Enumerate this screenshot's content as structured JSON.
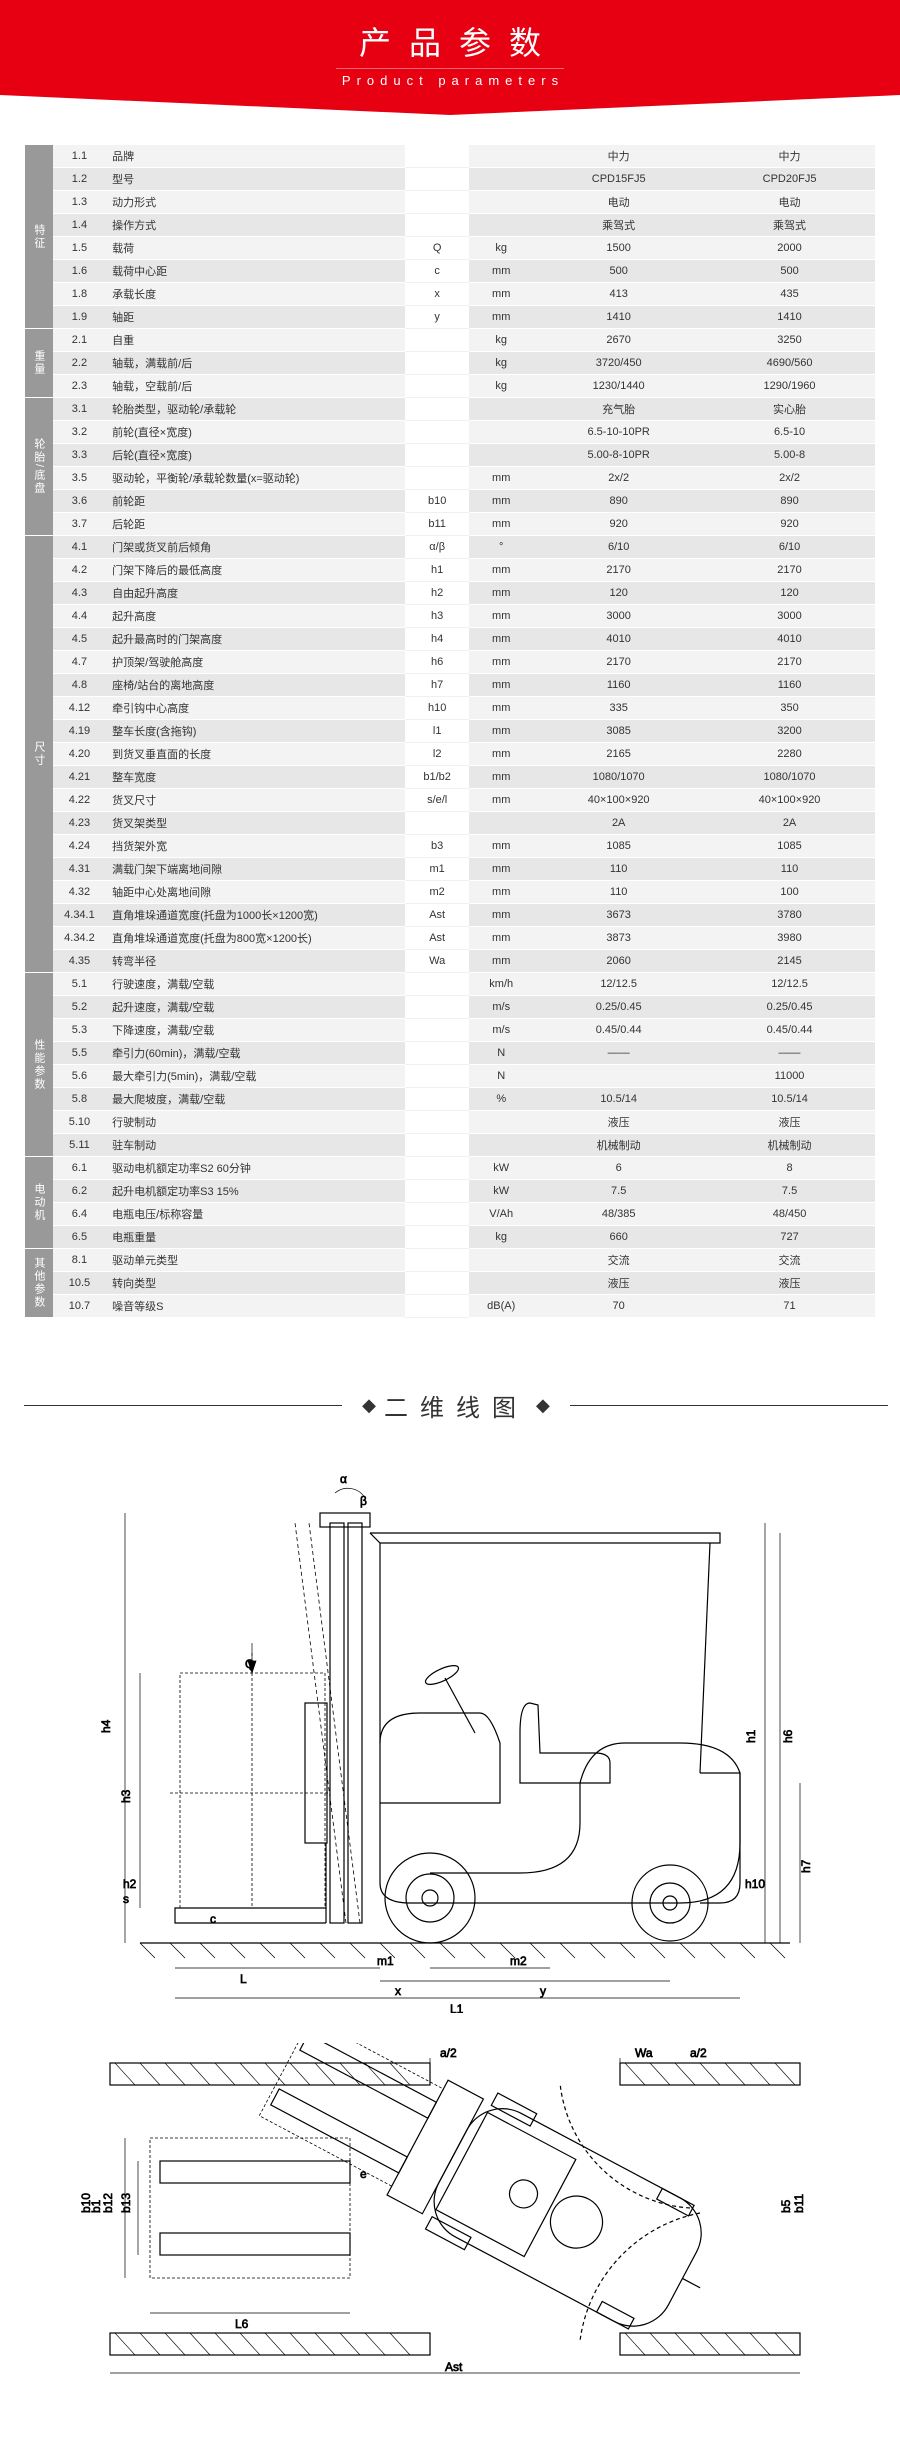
{
  "header": {
    "title_cn": "产品参数",
    "title_en": "Product parameters"
  },
  "section_diagram_title": "二维线图",
  "colors": {
    "banner_bg": "#e60012",
    "banner_text": "#ffffff",
    "cat_bg": "#999999",
    "row_even": "#f3f3f3",
    "row_odd": "#e7e7e7"
  },
  "table": {
    "columns": [
      "idx",
      "label",
      "symbol",
      "unit",
      "v1",
      "v2"
    ],
    "categories": [
      {
        "name": "特征",
        "rows": [
          {
            "idx": "1.1",
            "label": "品牌",
            "symbol": "",
            "unit": "",
            "v1": "中力",
            "v2": "中力"
          },
          {
            "idx": "1.2",
            "label": "型号",
            "symbol": "",
            "unit": "",
            "v1": "CPD15FJ5",
            "v2": "CPD20FJ5"
          },
          {
            "idx": "1.3",
            "label": "动力形式",
            "symbol": "",
            "unit": "",
            "v1": "电动",
            "v2": "电动"
          },
          {
            "idx": "1.4",
            "label": "操作方式",
            "symbol": "",
            "unit": "",
            "v1": "乘驾式",
            "v2": "乘驾式"
          },
          {
            "idx": "1.5",
            "label": "载荷",
            "symbol": "Q",
            "unit": "kg",
            "v1": "1500",
            "v2": "2000"
          },
          {
            "idx": "1.6",
            "label": "载荷中心距",
            "symbol": "c",
            "unit": "mm",
            "v1": "500",
            "v2": "500"
          },
          {
            "idx": "1.8",
            "label": "承载长度",
            "symbol": "x",
            "unit": "mm",
            "v1": "413",
            "v2": "435"
          },
          {
            "idx": "1.9",
            "label": "轴距",
            "symbol": "y",
            "unit": "mm",
            "v1": "1410",
            "v2": "1410"
          }
        ]
      },
      {
        "name": "重量",
        "rows": [
          {
            "idx": "2.1",
            "label": "自重",
            "symbol": "",
            "unit": "kg",
            "v1": "2670",
            "v2": "3250"
          },
          {
            "idx": "2.2",
            "label": "轴载，满载前/后",
            "symbol": "",
            "unit": "kg",
            "v1": "3720/450",
            "v2": "4690/560"
          },
          {
            "idx": "2.3",
            "label": "轴载，空载前/后",
            "symbol": "",
            "unit": "kg",
            "v1": "1230/1440",
            "v2": "1290/1960"
          }
        ]
      },
      {
        "name": "轮胎/底盘",
        "rows": [
          {
            "idx": "3.1",
            "label": "轮胎类型，驱动轮/承载轮",
            "symbol": "",
            "unit": "",
            "v1": "充气胎",
            "v2": "实心胎"
          },
          {
            "idx": "3.2",
            "label": "前轮(直径×宽度)",
            "symbol": "",
            "unit": "",
            "v1": "6.5-10-10PR",
            "v2": "6.5-10"
          },
          {
            "idx": "3.3",
            "label": "后轮(直径×宽度)",
            "symbol": "",
            "unit": "",
            "v1": "5.00-8-10PR",
            "v2": "5.00-8"
          },
          {
            "idx": "3.5",
            "label": "驱动轮，平衡轮/承载轮数量(x=驱动轮)",
            "symbol": "",
            "unit": "mm",
            "v1": "2x/2",
            "v2": "2x/2"
          },
          {
            "idx": "3.6",
            "label": "前轮距",
            "symbol": "b10",
            "unit": "mm",
            "v1": "890",
            "v2": "890"
          },
          {
            "idx": "3.7",
            "label": "后轮距",
            "symbol": "b11",
            "unit": "mm",
            "v1": "920",
            "v2": "920"
          }
        ]
      },
      {
        "name": "尺寸",
        "rows": [
          {
            "idx": "4.1",
            "label": "门架或货叉前后倾角",
            "symbol": "α/β",
            "unit": "°",
            "v1": "6/10",
            "v2": "6/10"
          },
          {
            "idx": "4.2",
            "label": "门架下降后的最低高度",
            "symbol": "h1",
            "unit": "mm",
            "v1": "2170",
            "v2": "2170"
          },
          {
            "idx": "4.3",
            "label": "自由起升高度",
            "symbol": "h2",
            "unit": "mm",
            "v1": "120",
            "v2": "120"
          },
          {
            "idx": "4.4",
            "label": "起升高度",
            "symbol": "h3",
            "unit": "mm",
            "v1": "3000",
            "v2": "3000"
          },
          {
            "idx": "4.5",
            "label": "起升最高时的门架高度",
            "symbol": "h4",
            "unit": "mm",
            "v1": "4010",
            "v2": "4010"
          },
          {
            "idx": "4.7",
            "label": "护顶架/驾驶舱高度",
            "symbol": "h6",
            "unit": "mm",
            "v1": "2170",
            "v2": "2170"
          },
          {
            "idx": "4.8",
            "label": "座椅/站台的离地高度",
            "symbol": "h7",
            "unit": "mm",
            "v1": "1160",
            "v2": "1160"
          },
          {
            "idx": "4.12",
            "label": "牵引钩中心高度",
            "symbol": "h10",
            "unit": "mm",
            "v1": "335",
            "v2": "350"
          },
          {
            "idx": "4.19",
            "label": "整车长度(含拖钩)",
            "symbol": "l1",
            "unit": "mm",
            "v1": "3085",
            "v2": "3200"
          },
          {
            "idx": "4.20",
            "label": "到货叉垂直面的长度",
            "symbol": "l2",
            "unit": "mm",
            "v1": "2165",
            "v2": "2280"
          },
          {
            "idx": "4.21",
            "label": "整车宽度",
            "symbol": "b1/b2",
            "unit": "mm",
            "v1": "1080/1070",
            "v2": "1080/1070"
          },
          {
            "idx": "4.22",
            "label": "货叉尺寸",
            "symbol": "s/e/l",
            "unit": "mm",
            "v1": "40×100×920",
            "v2": "40×100×920"
          },
          {
            "idx": "4.23",
            "label": "货叉架类型",
            "symbol": "",
            "unit": "",
            "v1": "2A",
            "v2": "2A"
          },
          {
            "idx": "4.24",
            "label": "挡货架外宽",
            "symbol": "b3",
            "unit": "mm",
            "v1": "1085",
            "v2": "1085"
          },
          {
            "idx": "4.31",
            "label": "满载门架下端离地间隙",
            "symbol": "m1",
            "unit": "mm",
            "v1": "110",
            "v2": "110"
          },
          {
            "idx": "4.32",
            "label": "轴距中心处离地间隙",
            "symbol": "m2",
            "unit": "mm",
            "v1": "110",
            "v2": "100"
          },
          {
            "idx": "4.34.1",
            "label": "直角堆垛通道宽度(托盘为1000长×1200宽)",
            "symbol": "Ast",
            "unit": "mm",
            "v1": "3673",
            "v2": "3780"
          },
          {
            "idx": "4.34.2",
            "label": "直角堆垛通道宽度(托盘为800宽×1200长)",
            "symbol": "Ast",
            "unit": "mm",
            "v1": "3873",
            "v2": "3980"
          },
          {
            "idx": "4.35",
            "label": "转弯半径",
            "symbol": "Wa",
            "unit": "mm",
            "v1": "2060",
            "v2": "2145"
          }
        ]
      },
      {
        "name": "性能参数",
        "rows": [
          {
            "idx": "5.1",
            "label": "行驶速度，满载/空载",
            "symbol": "",
            "unit": "km/h",
            "v1": "12/12.5",
            "v2": "12/12.5"
          },
          {
            "idx": "5.2",
            "label": "起升速度，满载/空载",
            "symbol": "",
            "unit": "m/s",
            "v1": "0.25/0.45",
            "v2": "0.25/0.45"
          },
          {
            "idx": "5.3",
            "label": "下降速度，满载/空载",
            "symbol": "",
            "unit": "m/s",
            "v1": "0.45/0.44",
            "v2": "0.45/0.44"
          },
          {
            "idx": "5.5",
            "label": "牵引力(60min)，满载/空载",
            "symbol": "",
            "unit": "N",
            "v1": "——",
            "v2": "——"
          },
          {
            "idx": "5.6",
            "label": "最大牵引力(5min)，满载/空载",
            "symbol": "",
            "unit": "N",
            "v1": "",
            "v2": "11000"
          },
          {
            "idx": "5.8",
            "label": "最大爬坡度，满载/空载",
            "symbol": "",
            "unit": "%",
            "v1": "10.5/14",
            "v2": "10.5/14"
          },
          {
            "idx": "5.10",
            "label": "行驶制动",
            "symbol": "",
            "unit": "",
            "v1": "液压",
            "v2": "液压"
          },
          {
            "idx": "5.11",
            "label": "驻车制动",
            "symbol": "",
            "unit": "",
            "v1": "机械制动",
            "v2": "机械制动"
          }
        ]
      },
      {
        "name": "电动机",
        "rows": [
          {
            "idx": "6.1",
            "label": "驱动电机额定功率S2 60分钟",
            "symbol": "",
            "unit": "kW",
            "v1": "6",
            "v2": "8"
          },
          {
            "idx": "6.2",
            "label": "起升电机额定功率S3 15%",
            "symbol": "",
            "unit": "kW",
            "v1": "7.5",
            "v2": "7.5"
          },
          {
            "idx": "6.4",
            "label": "电瓶电压/标称容量",
            "symbol": "",
            "unit": "V/Ah",
            "v1": "48/385",
            "v2": "48/450"
          },
          {
            "idx": "6.5",
            "label": "电瓶重量",
            "symbol": "",
            "unit": "kg",
            "v1": "660",
            "v2": "727"
          }
        ]
      },
      {
        "name": "其他参数",
        "rows": [
          {
            "idx": "8.1",
            "label": "驱动单元类型",
            "symbol": "",
            "unit": "",
            "v1": "交流",
            "v2": "交流"
          },
          {
            "idx": "10.5",
            "label": "转向类型",
            "symbol": "",
            "unit": "",
            "v1": "液压",
            "v2": "液压"
          },
          {
            "idx": "10.7",
            "label": "噪音等级S",
            "symbol": "",
            "unit": "dB(A)",
            "v1": "70",
            "v2": "71"
          }
        ]
      }
    ]
  },
  "diagrams": {
    "side": {
      "labels": [
        "α",
        "β",
        "h1",
        "h2",
        "h3",
        "h4",
        "h6",
        "h7",
        "h10",
        "m1",
        "m2",
        "x",
        "y",
        "L",
        "L1",
        "c",
        "Q",
        "s"
      ],
      "stroke": "#000",
      "stroke_width": 1
    },
    "top": {
      "labels": [
        "a/2",
        "a/2",
        "Wa",
        "b1",
        "b5",
        "b10",
        "b11",
        "b12",
        "b13",
        "e",
        "L6",
        "Ast"
      ],
      "stroke": "#000",
      "stroke_width": 1
    }
  }
}
